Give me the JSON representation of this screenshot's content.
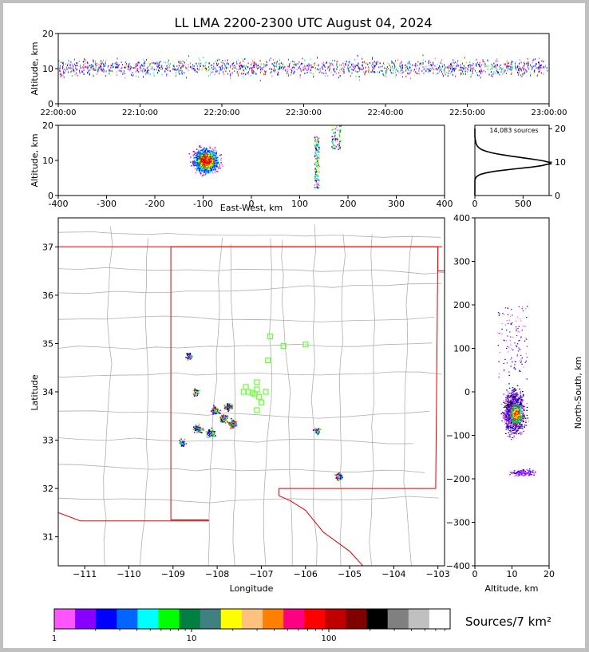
{
  "title": "LL LMA 2200-2300 UTC August 04, 2024",
  "time_panel": {
    "ylabel": "Altitude, km",
    "y_ticks": [
      "0",
      "10",
      "20"
    ],
    "x_ticks": [
      "22:00:00",
      "22:10:00",
      "22:20:00",
      "22:30:00",
      "22:40:00",
      "22:50:00",
      "23:00:00"
    ]
  },
  "ew_panel": {
    "ylabel": "Altitude, km",
    "xlabel": "East-West, km",
    "y_ticks": [
      "0",
      "10",
      "20"
    ],
    "x_ticks": [
      "-400",
      "-300",
      "-200",
      "-100",
      "0",
      "100",
      "200",
      "300",
      "400"
    ]
  },
  "hist_panel": {
    "annotation": "14,083 sources",
    "y_ticks": [
      "0",
      "10",
      "20"
    ],
    "x_ticks": [
      "0",
      "500"
    ]
  },
  "map_panel": {
    "xlabel": "Longitude",
    "ylabel": "Latitude",
    "x_ticks": [
      "−111",
      "−110",
      "−109",
      "−108",
      "−107",
      "−106",
      "−105",
      "−104",
      "−103"
    ],
    "y_ticks": [
      "31",
      "32",
      "33",
      "34",
      "35",
      "36",
      "37"
    ]
  },
  "ns_panel": {
    "xlabel": "Altitude, km",
    "ylabel": "North-South, km",
    "x_ticks": [
      "0",
      "10",
      "20"
    ],
    "y_ticks": [
      "400",
      "300",
      "200",
      "100",
      "0",
      "−100",
      "−200",
      "−300",
      "−400"
    ]
  },
  "colorbar": {
    "label": "Sources/7 km²",
    "tick_labels": [
      "1",
      "10",
      "100"
    ],
    "colors": [
      "#ff55ff",
      "#8800ff",
      "#0000ff",
      "#0066ff",
      "#00ffff",
      "#00ff00",
      "#008040",
      "#408080",
      "#ffff00",
      "#ffc080",
      "#ff8000",
      "#ff0080",
      "#ff0000",
      "#c00000",
      "#800000",
      "#000000",
      "#808080",
      "#c0c0c0",
      "#ffffff"
    ]
  },
  "chart_data": [
    {
      "type": "scatter",
      "name": "altitude-vs-time",
      "xlim": [
        "22:00:00",
        "23:00:00"
      ],
      "ylim": [
        0,
        20
      ],
      "y_core_km": [
        7,
        14
      ]
    },
    {
      "type": "heatmap",
      "name": "altitude-vs-east-west",
      "xlim": [
        -400,
        400
      ],
      "ylim": [
        0,
        20
      ],
      "clusters": [
        {
          "x_km": [
            -160,
            -40
          ],
          "z_km": [
            5,
            19
          ],
          "peak_x_km": -95,
          "peak_z_km": 10
        },
        {
          "x_km": [
            130,
            140
          ],
          "z_km": [
            2,
            17
          ]
        },
        {
          "x_km": [
            165,
            185
          ],
          "z_km": [
            13,
            20
          ]
        }
      ]
    },
    {
      "type": "line",
      "name": "altitude-histogram",
      "xlim": [
        0,
        770
      ],
      "ylim": [
        0,
        21
      ],
      "peak": {
        "count": 750,
        "altitude_km": 9.5
      },
      "total_sources": 14083
    },
    {
      "type": "heatmap",
      "name": "plan-view-map",
      "xlim": [
        -111.6,
        -102.85
      ],
      "ylim": [
        30.4,
        37.6
      ],
      "stations": [
        {
          "lon": -106.8,
          "lat": 35.15
        },
        {
          "lon": -106.5,
          "lat": 34.95
        },
        {
          "lon": -106.0,
          "lat": 34.98
        },
        {
          "lon": -106.85,
          "lat": 34.65
        },
        {
          "lon": -107.1,
          "lat": 34.2
        },
        {
          "lon": -107.1,
          "lat": 34.05
        },
        {
          "lon": -107.3,
          "lat": 34.0
        },
        {
          "lon": -107.2,
          "lat": 33.98
        },
        {
          "lon": -107.4,
          "lat": 34.0
        },
        {
          "lon": -107.15,
          "lat": 33.95
        },
        {
          "lon": -107.05,
          "lat": 33.9
        },
        {
          "lon": -106.9,
          "lat": 34.0
        },
        {
          "lon": -107.0,
          "lat": 33.78
        },
        {
          "lon": -107.1,
          "lat": 33.62
        },
        {
          "lon": -107.35,
          "lat": 34.1
        }
      ],
      "clusters": [
        {
          "lon": -108.0,
          "lat": 33.5,
          "size": "large"
        },
        {
          "lon": -105.25,
          "lat": 32.25,
          "size": "medium"
        },
        {
          "lon": -105.75,
          "lat": 33.2,
          "size": "small"
        },
        {
          "lon": -108.5,
          "lat": 34.0,
          "size": "small"
        },
        {
          "lon": -108.65,
          "lat": 34.75,
          "size": "small"
        },
        {
          "lon": -108.8,
          "lat": 32.95,
          "size": "small"
        }
      ]
    },
    {
      "type": "heatmap",
      "name": "north-south-vs-altitude",
      "xlim": [
        0,
        20
      ],
      "ylim": [
        -400,
        400
      ],
      "core": {
        "z_km": [
          5,
          16
        ],
        "y_km": [
          -100,
          20
        ]
      }
    }
  ]
}
